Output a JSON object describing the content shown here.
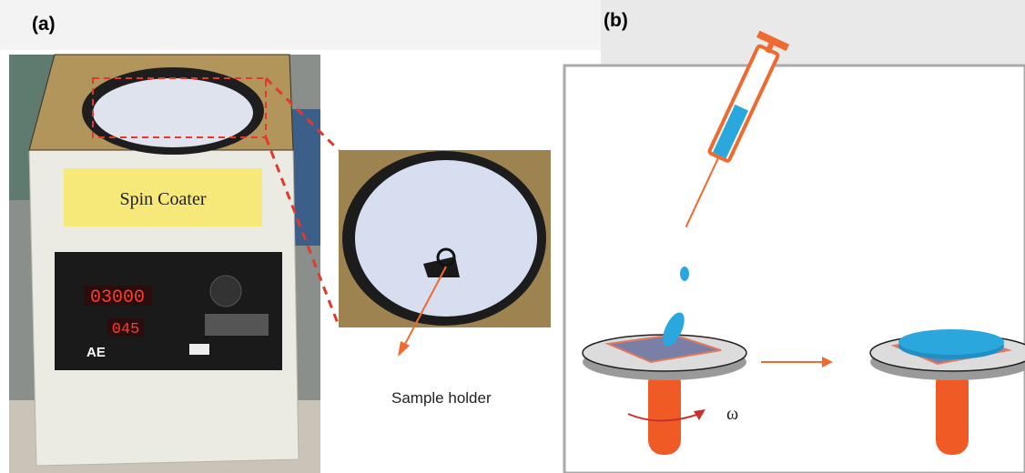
{
  "panels": [
    {
      "label": "(a)"
    },
    {
      "label": "(b)"
    }
  ],
  "photo": {
    "sign": "Spin Coater",
    "speed_display": "03000",
    "time_display": "045",
    "brand": "AE",
    "callout": "Sample holder"
  },
  "diagram": {
    "rotation_symbol": "ω"
  }
}
